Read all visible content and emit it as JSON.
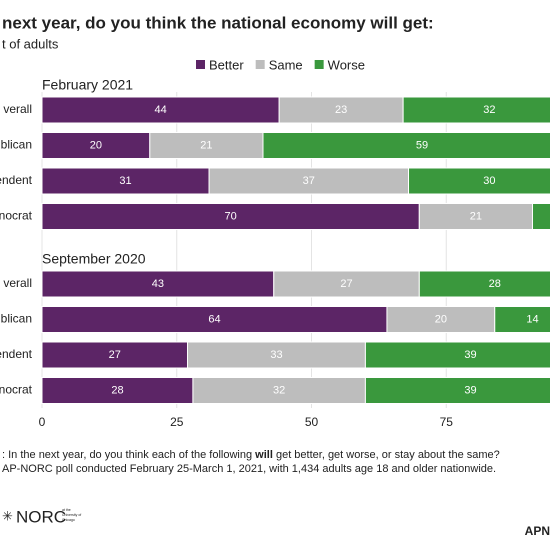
{
  "chart_data": {
    "type": "stacked-bar-horizontal",
    "title": "next year, do you think the national economy will get:",
    "subtitle": "t of adults",
    "panels": [
      "February 2021",
      "September 2020"
    ],
    "categories": [
      "verall",
      "blican",
      "endent",
      "nocrat"
    ],
    "series": [
      {
        "name": "Better",
        "color": "#5c2566",
        "values": [
          [
            44,
            20,
            31,
            70
          ],
          [
            43,
            64,
            27,
            28
          ]
        ]
      },
      {
        "name": "Same",
        "color": "#bdbdbd",
        "values": [
          [
            23,
            21,
            37,
            21
          ],
          [
            27,
            20,
            33,
            32
          ]
        ]
      },
      {
        "name": "Worse",
        "color": "#3a983d",
        "values": [
          [
            32,
            59,
            30,
            8
          ],
          [
            28,
            14,
            39,
            39
          ]
        ]
      }
    ],
    "xlim": [
      0,
      100
    ],
    "xticks": [
      0,
      25,
      50,
      75
    ],
    "grid": true,
    "note": [
      ": In the next year, do you think each of the following ",
      "will",
      " get better, get worse, or stay about the same?"
    ],
    "source": "AP-NORC poll conducted February 25-March 1, 2021, with 1,434 adults age 18 and older nationwide.",
    "logo": "NORC",
    "logo_sub": [
      "at the",
      "University of",
      "Chicago"
    ],
    "credit": "APN"
  }
}
